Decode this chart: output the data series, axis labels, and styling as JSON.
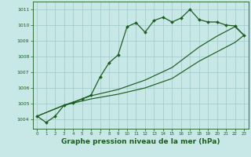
{
  "xlabel": "Graphe pression niveau de la mer (hPa)",
  "xlim": [
    -0.5,
    23.5
  ],
  "ylim": [
    1003.4,
    1011.5
  ],
  "yticks": [
    1004,
    1005,
    1006,
    1007,
    1008,
    1009,
    1010,
    1011
  ],
  "xticks": [
    0,
    1,
    2,
    3,
    4,
    5,
    6,
    7,
    8,
    9,
    10,
    11,
    12,
    13,
    14,
    15,
    16,
    17,
    18,
    19,
    20,
    21,
    22,
    23
  ],
  "background_color": "#c8e8e8",
  "grid_color": "#a0c8c8",
  "line_color": "#1e5c1e",
  "line1_x": [
    0,
    1,
    2,
    3,
    4,
    5,
    6,
    7,
    8,
    9,
    10,
    11,
    12,
    13,
    14,
    15,
    16,
    17,
    18,
    19,
    20,
    21,
    22,
    23
  ],
  "line1_y": [
    1004.2,
    1003.8,
    1004.2,
    1004.9,
    1005.05,
    1005.3,
    1005.55,
    1006.7,
    1007.6,
    1008.1,
    1009.9,
    1010.15,
    1009.55,
    1010.3,
    1010.5,
    1010.2,
    1010.45,
    1011.0,
    1010.35,
    1010.2,
    1010.2,
    1010.0,
    1009.95,
    1009.35
  ],
  "line2_x": [
    0,
    3,
    6,
    9,
    12,
    15,
    18,
    20,
    22,
    23
  ],
  "line2_y": [
    1004.2,
    1004.9,
    1005.5,
    1005.9,
    1006.5,
    1007.3,
    1008.6,
    1009.3,
    1009.9,
    1009.35
  ],
  "line3_x": [
    0,
    3,
    6,
    9,
    12,
    15,
    18,
    20,
    22,
    23
  ],
  "line3_y": [
    1004.2,
    1004.9,
    1005.3,
    1005.6,
    1006.0,
    1006.6,
    1007.7,
    1008.3,
    1008.9,
    1009.35
  ]
}
